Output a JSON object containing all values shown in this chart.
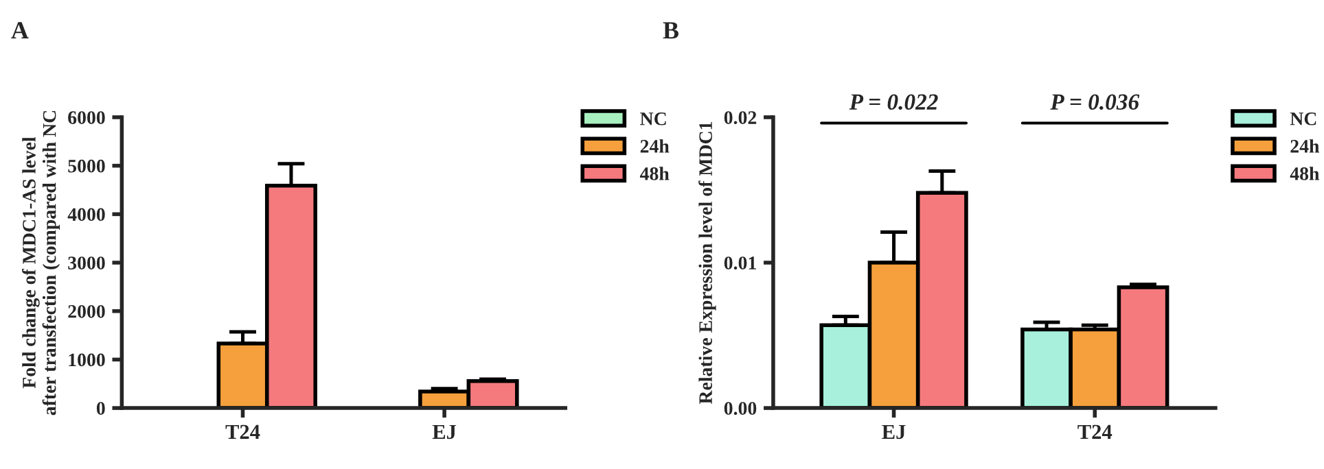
{
  "chart_data": [
    {
      "type": "bar",
      "title": "A",
      "ylabel": "Fold change of MDC1-AS level\nafter transfection (compared with NC",
      "categories": [
        "T24",
        "EJ"
      ],
      "ylim": [
        0,
        6000
      ],
      "yticks": [
        0,
        1000,
        2000,
        3000,
        4000,
        5000,
        6000
      ],
      "legend": "top right",
      "grid": false,
      "series": [
        {
          "name": "NC",
          "color": "#a8f0c0",
          "values": [
            null,
            null
          ]
        },
        {
          "name": "24h",
          "color": "#f5a03c",
          "values": [
            1330,
            340
          ],
          "errors": [
            [
              1330,
              1570
            ],
            [
              340,
              400
            ]
          ]
        },
        {
          "name": "48h",
          "color": "#f57a7e",
          "values": [
            4590,
            557
          ],
          "errors": [
            [
              4590,
              5040
            ],
            [
              557,
              595
            ]
          ]
        }
      ]
    },
    {
      "type": "bar",
      "title": "B",
      "ylabel": "Relative Expression level of MDC1",
      "categories": [
        "EJ",
        "T24"
      ],
      "ylim": [
        0,
        0.02
      ],
      "yticks": [
        {
          "value": 0,
          "label": "0.00"
        },
        {
          "value": 0.01,
          "label": "0.01"
        },
        {
          "value": 0.02,
          "label": "0.02"
        }
      ],
      "legend": "top right",
      "grid": false,
      "annotations": [
        "P = 0.022",
        "P = 0.036"
      ],
      "series": [
        {
          "name": "NC",
          "color": "#a8f0dc",
          "values": [
            0.0057,
            0.0054
          ],
          "errors": [
            [
              0.0057,
              0.0063
            ],
            [
              0.0054,
              0.0059
            ]
          ]
        },
        {
          "name": "24h",
          "color": "#f5a03c",
          "values": [
            0.01,
            0.0054
          ],
          "errors": [
            [
              0.01,
              0.0121
            ],
            [
              0.0054,
              0.0057
            ]
          ]
        },
        {
          "name": "48h",
          "color": "#f57a7e",
          "values": [
            0.0148,
            0.0083
          ],
          "errors": [
            [
              0.0148,
              0.0163
            ],
            [
              0.0083,
              0.0085
            ]
          ]
        }
      ]
    }
  ]
}
